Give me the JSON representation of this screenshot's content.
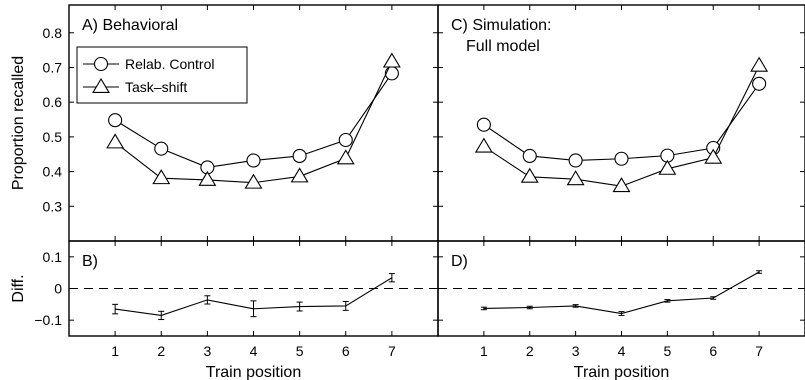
{
  "chart_data": [
    {
      "panel": "A",
      "type": "line",
      "title_lines": [
        "A) Behavioral"
      ],
      "x": [
        1,
        2,
        3,
        4,
        5,
        6,
        7
      ],
      "xlim": [
        0,
        8
      ],
      "ylim": [
        0.2,
        0.88
      ],
      "yticks": [
        0.3,
        0.4,
        0.5,
        0.6,
        0.7,
        0.8
      ],
      "ylabel": "Proportion recalled",
      "legend": "top-left",
      "series": [
        {
          "name": "Relab. Control",
          "marker": "circle",
          "values": [
            0.548,
            0.466,
            0.412,
            0.432,
            0.445,
            0.491,
            0.683
          ]
        },
        {
          "name": "Task–shift",
          "marker": "triangle",
          "values": [
            0.484,
            0.381,
            0.376,
            0.368,
            0.386,
            0.438,
            0.717
          ]
        }
      ]
    },
    {
      "panel": "C",
      "type": "line",
      "title_lines": [
        "C) Simulation:",
        "Full model"
      ],
      "x": [
        1,
        2,
        3,
        4,
        5,
        6,
        7
      ],
      "xlim": [
        0,
        8
      ],
      "ylim": [
        0.2,
        0.88
      ],
      "yticks": [
        0.3,
        0.4,
        0.5,
        0.6,
        0.7,
        0.8
      ],
      "series": [
        {
          "name": "Relab. Control",
          "marker": "circle",
          "values": [
            0.535,
            0.445,
            0.432,
            0.437,
            0.446,
            0.468,
            0.653
          ]
        },
        {
          "name": "Task–shift",
          "marker": "triangle",
          "values": [
            0.472,
            0.385,
            0.378,
            0.358,
            0.408,
            0.44,
            0.705
          ]
        }
      ]
    },
    {
      "panel": "B",
      "type": "line",
      "title_lines": [
        "B)"
      ],
      "x": [
        1,
        2,
        3,
        4,
        5,
        6,
        7
      ],
      "xlim": [
        0,
        8
      ],
      "ylim": [
        -0.15,
        0.15
      ],
      "yticks": [
        -0.1,
        0,
        0.1
      ],
      "ytick_labels": [
        "−0.1",
        "0",
        "0.1"
      ],
      "ylabel": "Diff.",
      "xlabel": "Train position",
      "reference_line": 0,
      "series": [
        {
          "values": [
            -0.065,
            -0.085,
            -0.036,
            -0.064,
            -0.057,
            -0.055,
            0.034
          ],
          "errors": [
            0.015,
            0.013,
            0.013,
            0.025,
            0.014,
            0.014,
            0.013
          ]
        }
      ]
    },
    {
      "panel": "D",
      "type": "line",
      "title_lines": [
        "D)"
      ],
      "x": [
        1,
        2,
        3,
        4,
        5,
        6,
        7
      ],
      "xlim": [
        0,
        8
      ],
      "ylim": [
        -0.15,
        0.15
      ],
      "yticks": [
        -0.1,
        0,
        0.1
      ],
      "xlabel": "Train position",
      "reference_line": 0,
      "series": [
        {
          "values": [
            -0.063,
            -0.06,
            -0.055,
            -0.079,
            -0.039,
            -0.03,
            0.052
          ],
          "errors": [
            0.004,
            0.004,
            0.004,
            0.006,
            0.004,
            0.004,
            0.004
          ]
        }
      ]
    }
  ]
}
